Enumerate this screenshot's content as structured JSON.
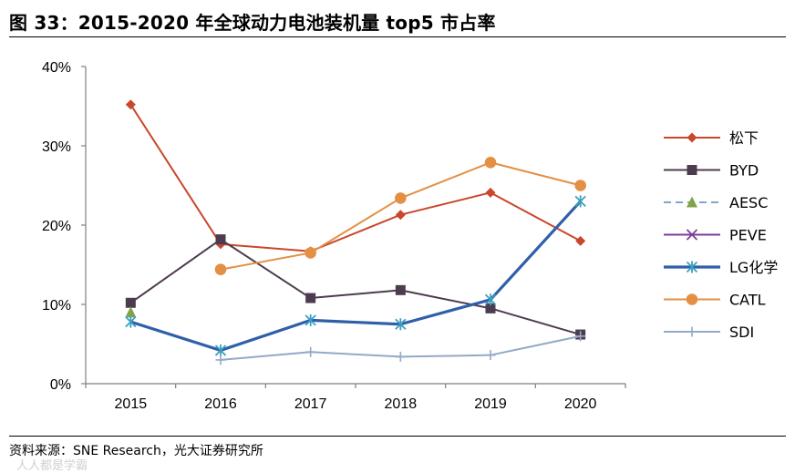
{
  "title": "图 33：2015-2020 年全球动力电池装机量 top5 市占率",
  "source": "资料来源：SNE Research，光大证券研究所",
  "watermark": "人人都是学霸",
  "chart_data": {
    "type": "line",
    "x": [
      "2015",
      "2016",
      "2017",
      "2018",
      "2019",
      "2020"
    ],
    "ylim": [
      0,
      40
    ],
    "yticks": [
      0,
      10,
      20,
      30,
      40
    ],
    "ytick_labels": [
      "0%",
      "10%",
      "20%",
      "30%",
      "40%"
    ],
    "xlabel": "",
    "ylabel": "",
    "grid": false,
    "legend_position": "right",
    "series": [
      {
        "name": "松下",
        "color": "#c9472a",
        "marker": "diamond",
        "dash": "solid",
        "width": "thin",
        "values": [
          35.2,
          17.6,
          16.7,
          21.3,
          24.1,
          18.0
        ]
      },
      {
        "name": "BYD",
        "color": "#4d3b4f",
        "marker": "square",
        "dash": "solid",
        "width": "thin",
        "values": [
          10.2,
          18.2,
          10.8,
          11.8,
          9.5,
          6.2
        ]
      },
      {
        "name": "AESC",
        "color": "#7fa7c5",
        "marker": "triangle",
        "dash": "dashed",
        "width": "thin",
        "marker_color": "#7fa447",
        "values": [
          9.0,
          null,
          null,
          null,
          null,
          null
        ]
      },
      {
        "name": "PEVE",
        "color": "#7a3f9a",
        "marker": "x",
        "dash": "solid",
        "width": "thin",
        "values": [
          null,
          null,
          null,
          null,
          null,
          null
        ]
      },
      {
        "name": "LG化学",
        "color": "#2f5fa9",
        "marker": "asterisk",
        "dash": "solid",
        "width": "thick",
        "marker_color": "#3aa0c0",
        "values": [
          7.8,
          4.2,
          8.0,
          7.5,
          10.6,
          23.0
        ]
      },
      {
        "name": "CATL",
        "color": "#e39044",
        "marker": "circle",
        "dash": "solid",
        "width": "thin",
        "values": [
          null,
          14.4,
          16.5,
          23.4,
          27.9,
          25.0
        ]
      },
      {
        "name": "SDI",
        "color": "#92aac6",
        "marker": "plus",
        "dash": "solid",
        "width": "thin",
        "values": [
          null,
          3.0,
          4.0,
          3.4,
          3.6,
          6.0
        ]
      }
    ]
  }
}
